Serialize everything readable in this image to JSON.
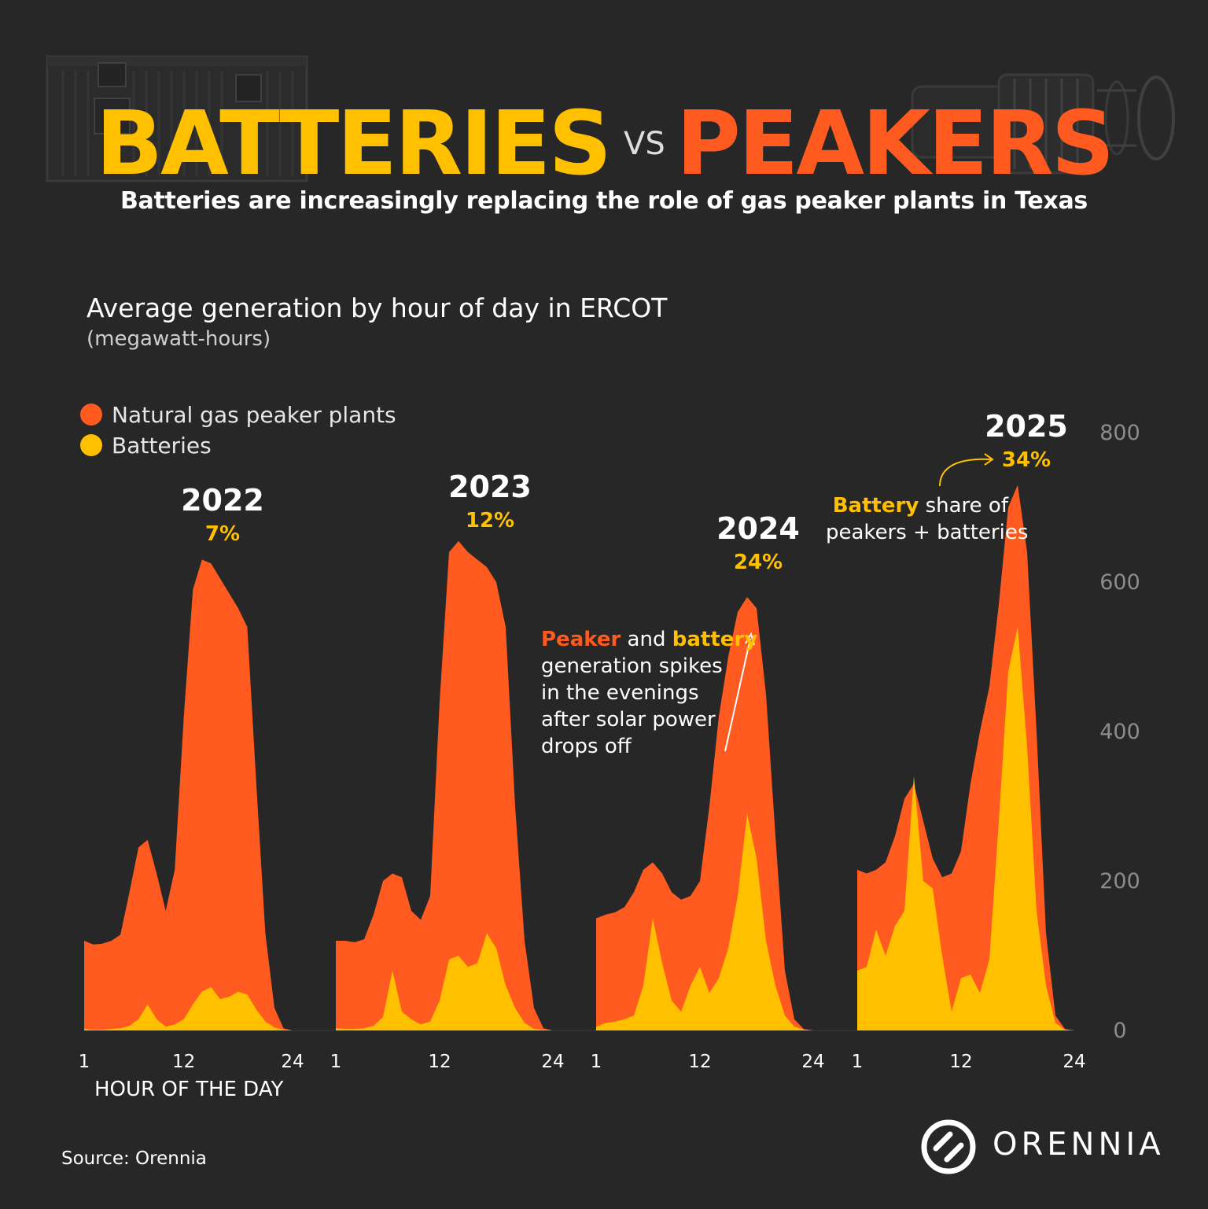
{
  "header": {
    "title_left": "BATTERIES",
    "title_vs": "VS",
    "title_right": "PEAKERS",
    "subtitle": "Batteries are increasingly replacing the role of gas peaker plants in Texas",
    "illustrations": [
      "battery-container-icon",
      "gas-turbine-icon"
    ]
  },
  "chart_data": {
    "type": "area",
    "title": "Average generation by hour of day in ERCOT",
    "unit": "(megawatt-hours)",
    "xlabel": "HOUR OF THE DAY",
    "ylim": [
      0,
      800
    ],
    "yticks": [
      0,
      200,
      400,
      600,
      800
    ],
    "grid": false,
    "legend_position": "top-left",
    "legend": [
      {
        "label": "Natural gas peaker plants",
        "color": "#ff5a1f"
      },
      {
        "label": "Batteries",
        "color": "#ffc000"
      }
    ],
    "panels": [
      {
        "year": "2022",
        "battery_share": "7%",
        "x": [
          1,
          24
        ],
        "xticks": [
          1,
          12,
          24
        ],
        "peakers": [
          [
            1,
            120
          ],
          [
            2,
            115
          ],
          [
            3,
            116
          ],
          [
            4,
            120
          ],
          [
            5,
            128
          ],
          [
            6,
            185
          ],
          [
            7,
            245
          ],
          [
            8,
            255
          ],
          [
            9,
            210
          ],
          [
            10,
            160
          ],
          [
            11,
            215
          ],
          [
            12,
            420
          ],
          [
            13,
            590
          ],
          [
            14,
            630
          ],
          [
            15,
            625
          ],
          [
            16,
            605
          ],
          [
            17,
            585
          ],
          [
            18,
            565
          ],
          [
            19,
            540
          ],
          [
            20,
            330
          ],
          [
            21,
            130
          ],
          [
            22,
            30
          ],
          [
            23,
            3
          ],
          [
            24,
            0
          ]
        ],
        "batteries": [
          [
            1,
            2
          ],
          [
            2,
            1
          ],
          [
            3,
            1
          ],
          [
            4,
            2
          ],
          [
            5,
            3
          ],
          [
            6,
            6
          ],
          [
            7,
            15
          ],
          [
            8,
            35
          ],
          [
            9,
            15
          ],
          [
            10,
            5
          ],
          [
            11,
            8
          ],
          [
            12,
            15
          ],
          [
            13,
            35
          ],
          [
            14,
            52
          ],
          [
            15,
            58
          ],
          [
            16,
            42
          ],
          [
            17,
            45
          ],
          [
            18,
            52
          ],
          [
            19,
            48
          ],
          [
            20,
            28
          ],
          [
            21,
            12
          ],
          [
            22,
            4
          ],
          [
            23,
            1
          ],
          [
            24,
            0
          ]
        ]
      },
      {
        "year": "2023",
        "battery_share": "12%",
        "x": [
          1,
          24
        ],
        "xticks": [
          1,
          12,
          24
        ],
        "peakers": [
          [
            1,
            120
          ],
          [
            2,
            120
          ],
          [
            3,
            118
          ],
          [
            4,
            122
          ],
          [
            5,
            155
          ],
          [
            6,
            200
          ],
          [
            7,
            210
          ],
          [
            8,
            205
          ],
          [
            9,
            160
          ],
          [
            10,
            148
          ],
          [
            11,
            180
          ],
          [
            12,
            440
          ],
          [
            13,
            640
          ],
          [
            14,
            655
          ],
          [
            15,
            640
          ],
          [
            16,
            630
          ],
          [
            17,
            620
          ],
          [
            18,
            600
          ],
          [
            19,
            540
          ],
          [
            20,
            300
          ],
          [
            21,
            120
          ],
          [
            22,
            30
          ],
          [
            23,
            3
          ],
          [
            24,
            0
          ]
        ],
        "batteries": [
          [
            1,
            3
          ],
          [
            2,
            2
          ],
          [
            3,
            2
          ],
          [
            4,
            3
          ],
          [
            5,
            6
          ],
          [
            6,
            18
          ],
          [
            7,
            80
          ],
          [
            8,
            25
          ],
          [
            9,
            15
          ],
          [
            10,
            8
          ],
          [
            11,
            12
          ],
          [
            12,
            40
          ],
          [
            13,
            95
          ],
          [
            14,
            100
          ],
          [
            15,
            85
          ],
          [
            16,
            90
          ],
          [
            17,
            130
          ],
          [
            18,
            110
          ],
          [
            19,
            60
          ],
          [
            20,
            30
          ],
          [
            21,
            10
          ],
          [
            22,
            2
          ],
          [
            23,
            1
          ],
          [
            24,
            0
          ]
        ]
      },
      {
        "year": "2024",
        "battery_share": "24%",
        "x": [
          1,
          24
        ],
        "xticks": [
          1,
          12,
          24
        ],
        "peakers": [
          [
            1,
            150
          ],
          [
            2,
            155
          ],
          [
            3,
            158
          ],
          [
            4,
            165
          ],
          [
            5,
            185
          ],
          [
            6,
            215
          ],
          [
            7,
            225
          ],
          [
            8,
            210
          ],
          [
            9,
            185
          ],
          [
            10,
            175
          ],
          [
            11,
            180
          ],
          [
            12,
            200
          ],
          [
            13,
            300
          ],
          [
            14,
            420
          ],
          [
            15,
            500
          ],
          [
            16,
            560
          ],
          [
            17,
            580
          ],
          [
            18,
            565
          ],
          [
            19,
            450
          ],
          [
            20,
            260
          ],
          [
            21,
            80
          ],
          [
            22,
            15
          ],
          [
            23,
            2
          ],
          [
            24,
            0
          ]
        ],
        "batteries": [
          [
            1,
            5
          ],
          [
            2,
            10
          ],
          [
            3,
            12
          ],
          [
            4,
            15
          ],
          [
            5,
            20
          ],
          [
            6,
            60
          ],
          [
            7,
            150
          ],
          [
            8,
            90
          ],
          [
            9,
            40
          ],
          [
            10,
            25
          ],
          [
            11,
            60
          ],
          [
            12,
            85
          ],
          [
            13,
            50
          ],
          [
            14,
            70
          ],
          [
            15,
            110
          ],
          [
            16,
            180
          ],
          [
            17,
            290
          ],
          [
            18,
            230
          ],
          [
            19,
            120
          ],
          [
            20,
            60
          ],
          [
            21,
            20
          ],
          [
            22,
            5
          ],
          [
            23,
            1
          ],
          [
            24,
            0
          ]
        ]
      },
      {
        "year": "2025",
        "battery_share": "34%",
        "x": [
          1,
          24
        ],
        "xticks": [
          1,
          12,
          24
        ],
        "peakers": [
          [
            1,
            215
          ],
          [
            2,
            210
          ],
          [
            3,
            215
          ],
          [
            4,
            225
          ],
          [
            5,
            260
          ],
          [
            6,
            310
          ],
          [
            7,
            330
          ],
          [
            8,
            280
          ],
          [
            9,
            230
          ],
          [
            10,
            205
          ],
          [
            11,
            210
          ],
          [
            12,
            240
          ],
          [
            13,
            330
          ],
          [
            14,
            400
          ],
          [
            15,
            460
          ],
          [
            16,
            570
          ],
          [
            17,
            700
          ],
          [
            18,
            730
          ],
          [
            19,
            640
          ],
          [
            20,
            400
          ],
          [
            21,
            130
          ],
          [
            22,
            20
          ],
          [
            23,
            2
          ],
          [
            24,
            0
          ]
        ],
        "batteries": [
          [
            1,
            80
          ],
          [
            2,
            85
          ],
          [
            3,
            135
          ],
          [
            4,
            100
          ],
          [
            5,
            140
          ],
          [
            6,
            160
          ],
          [
            7,
            340
          ],
          [
            8,
            200
          ],
          [
            9,
            190
          ],
          [
            10,
            100
          ],
          [
            11,
            25
          ],
          [
            12,
            70
          ],
          [
            13,
            75
          ],
          [
            14,
            50
          ],
          [
            15,
            95
          ],
          [
            16,
            280
          ],
          [
            17,
            480
          ],
          [
            18,
            540
          ],
          [
            19,
            380
          ],
          [
            20,
            160
          ],
          [
            21,
            60
          ],
          [
            22,
            10
          ],
          [
            23,
            1
          ],
          [
            24,
            0
          ]
        ]
      }
    ],
    "annotations": [
      "Peaker and battery generation spikes in the evenings after solar power drops off",
      "Battery share of peakers + batteries"
    ]
  },
  "annotation_spikes": {
    "peaker": "Peaker",
    "and": " and ",
    "battery": "battery",
    "line2": "generation spikes",
    "line3": "in the evenings",
    "line4": "after solar power",
    "line5": "drops off"
  },
  "annotation_share": {
    "battery": "Battery",
    "rest1": " share of",
    "line2": "peakers + batteries"
  },
  "footer": {
    "source": "Source: Orennia",
    "brand": "ORENNIA"
  }
}
